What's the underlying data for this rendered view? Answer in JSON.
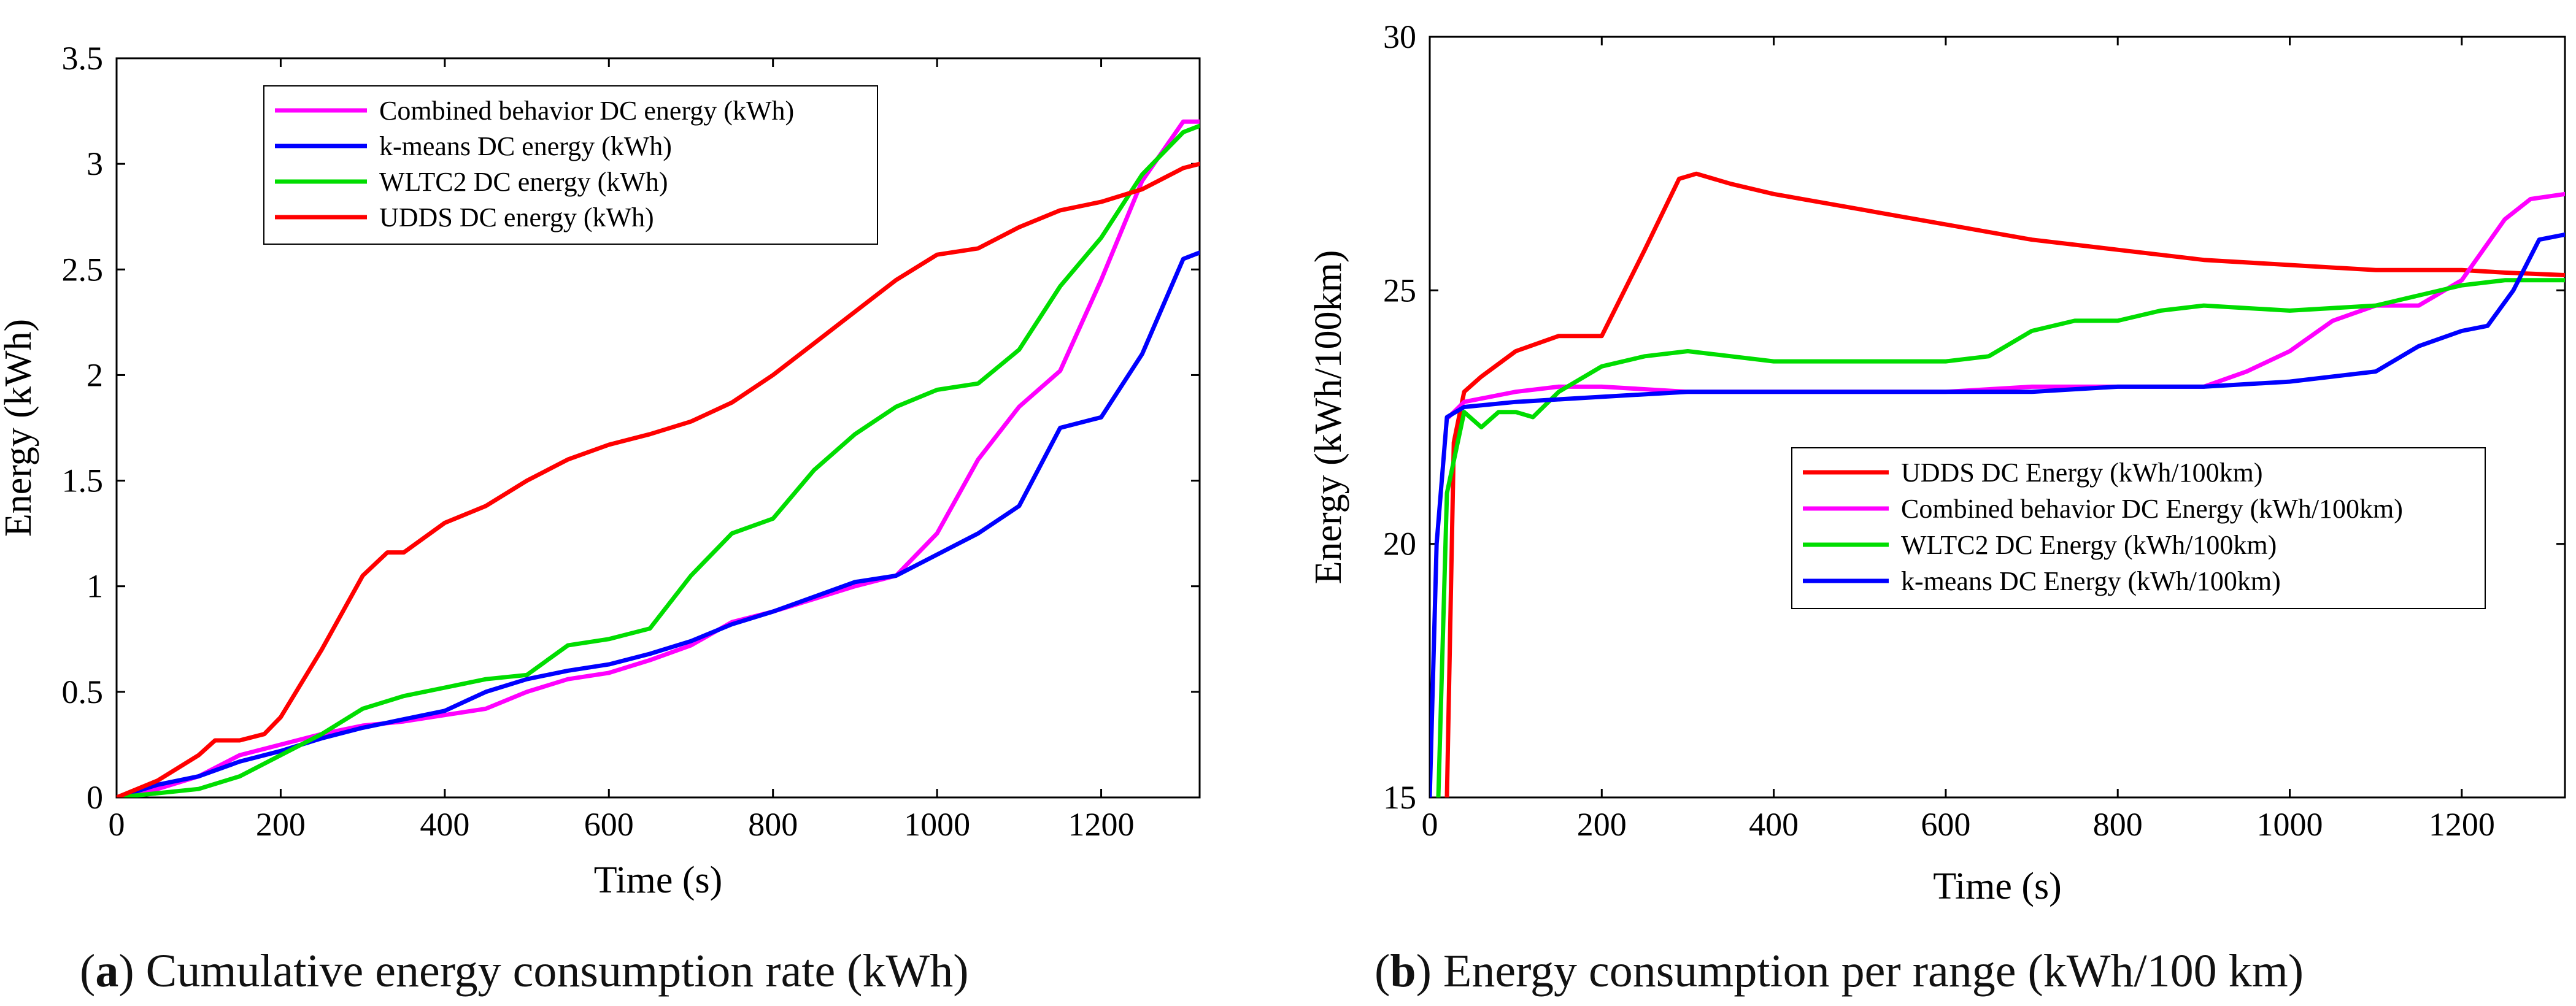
{
  "chart_data": [
    {
      "id": "a",
      "type": "line",
      "caption_letter": "a",
      "caption_text": "Cumulative energy consumption rate (kWh)",
      "xlabel": "Time (s)",
      "ylabel": "Energy (kWh)",
      "xlim": [
        0,
        1320
      ],
      "ylim": [
        0,
        3.5
      ],
      "xticks": [
        0,
        200,
        400,
        600,
        800,
        1000,
        1200
      ],
      "yticks": [
        0,
        0.5,
        1,
        1.5,
        2,
        2.5,
        3,
        3.5
      ],
      "ytick_labels": [
        "0",
        "0.5",
        "1",
        "1.5",
        "2",
        "2.5",
        "3",
        "3.5"
      ],
      "legend_position": "top-center",
      "series": [
        {
          "name": "Combined behavior DC energy (kWh)",
          "color": "#ff00ff",
          "points": [
            [
              0,
              0
            ],
            [
              50,
              0.04
            ],
            [
              100,
              0.1
            ],
            [
              150,
              0.2
            ],
            [
              200,
              0.25
            ],
            [
              250,
              0.3
            ],
            [
              300,
              0.34
            ],
            [
              350,
              0.36
            ],
            [
              400,
              0.39
            ],
            [
              450,
              0.42
            ],
            [
              500,
              0.5
            ],
            [
              550,
              0.56
            ],
            [
              600,
              0.59
            ],
            [
              650,
              0.65
            ],
            [
              700,
              0.72
            ],
            [
              750,
              0.83
            ],
            [
              800,
              0.88
            ],
            [
              850,
              0.94
            ],
            [
              900,
              1.0
            ],
            [
              950,
              1.05
            ],
            [
              1000,
              1.25
            ],
            [
              1050,
              1.6
            ],
            [
              1100,
              1.85
            ],
            [
              1150,
              2.02
            ],
            [
              1200,
              2.45
            ],
            [
              1250,
              2.92
            ],
            [
              1300,
              3.2
            ],
            [
              1320,
              3.2
            ]
          ]
        },
        {
          "name": "k-means DC energy (kWh)",
          "color": "#0000ff",
          "points": [
            [
              0,
              0
            ],
            [
              50,
              0.06
            ],
            [
              100,
              0.1
            ],
            [
              150,
              0.17
            ],
            [
              200,
              0.22
            ],
            [
              250,
              0.28
            ],
            [
              300,
              0.33
            ],
            [
              350,
              0.37
            ],
            [
              400,
              0.41
            ],
            [
              450,
              0.5
            ],
            [
              500,
              0.56
            ],
            [
              550,
              0.6
            ],
            [
              600,
              0.63
            ],
            [
              650,
              0.68
            ],
            [
              700,
              0.74
            ],
            [
              750,
              0.82
            ],
            [
              800,
              0.88
            ],
            [
              850,
              0.95
            ],
            [
              900,
              1.02
            ],
            [
              950,
              1.05
            ],
            [
              1000,
              1.15
            ],
            [
              1050,
              1.25
            ],
            [
              1100,
              1.38
            ],
            [
              1150,
              1.75
            ],
            [
              1200,
              1.8
            ],
            [
              1250,
              2.1
            ],
            [
              1300,
              2.55
            ],
            [
              1320,
              2.58
            ]
          ]
        },
        {
          "name": "WLTC2 DC energy (kWh)",
          "color": "#00dd00",
          "points": [
            [
              0,
              0
            ],
            [
              50,
              0.02
            ],
            [
              100,
              0.04
            ],
            [
              150,
              0.1
            ],
            [
              200,
              0.2
            ],
            [
              250,
              0.3
            ],
            [
              300,
              0.42
            ],
            [
              350,
              0.48
            ],
            [
              400,
              0.52
            ],
            [
              450,
              0.56
            ],
            [
              500,
              0.58
            ],
            [
              550,
              0.72
            ],
            [
              600,
              0.75
            ],
            [
              650,
              0.8
            ],
            [
              700,
              1.05
            ],
            [
              750,
              1.25
            ],
            [
              800,
              1.32
            ],
            [
              850,
              1.55
            ],
            [
              900,
              1.72
            ],
            [
              950,
              1.85
            ],
            [
              1000,
              1.93
            ],
            [
              1050,
              1.96
            ],
            [
              1100,
              2.12
            ],
            [
              1150,
              2.42
            ],
            [
              1200,
              2.65
            ],
            [
              1250,
              2.95
            ],
            [
              1300,
              3.15
            ],
            [
              1320,
              3.18
            ]
          ]
        },
        {
          "name": "UDDS DC energy (kWh)",
          "color": "#ff0000",
          "points": [
            [
              0,
              0
            ],
            [
              50,
              0.08
            ],
            [
              100,
              0.2
            ],
            [
              120,
              0.27
            ],
            [
              150,
              0.27
            ],
            [
              180,
              0.3
            ],
            [
              200,
              0.38
            ],
            [
              250,
              0.7
            ],
            [
              300,
              1.05
            ],
            [
              330,
              1.16
            ],
            [
              350,
              1.16
            ],
            [
              400,
              1.3
            ],
            [
              450,
              1.38
            ],
            [
              500,
              1.5
            ],
            [
              550,
              1.6
            ],
            [
              600,
              1.67
            ],
            [
              650,
              1.72
            ],
            [
              700,
              1.78
            ],
            [
              750,
              1.87
            ],
            [
              800,
              2.0
            ],
            [
              850,
              2.15
            ],
            [
              900,
              2.3
            ],
            [
              950,
              2.45
            ],
            [
              1000,
              2.57
            ],
            [
              1050,
              2.6
            ],
            [
              1100,
              2.7
            ],
            [
              1150,
              2.78
            ],
            [
              1200,
              2.82
            ],
            [
              1250,
              2.88
            ],
            [
              1300,
              2.98
            ],
            [
              1320,
              3.0
            ]
          ]
        }
      ]
    },
    {
      "id": "b",
      "type": "line",
      "caption_letter": "b",
      "caption_text": "Energy consumption per range (kWh/100 km)",
      "xlabel": "Time (s)",
      "ylabel": "Energy (kWh/100km)",
      "xlim": [
        0,
        1320
      ],
      "ylim": [
        15,
        30
      ],
      "xticks": [
        0,
        200,
        400,
        600,
        800,
        1000,
        1200
      ],
      "yticks": [
        15,
        20,
        25,
        30
      ],
      "ytick_labels": [
        "15",
        "20",
        "25",
        "30"
      ],
      "legend_position": "center-right",
      "series": [
        {
          "name": "UDDS DC Energy (kWh/100km)",
          "color": "#ff0000",
          "points": [
            [
              20,
              15
            ],
            [
              28,
              22
            ],
            [
              40,
              23
            ],
            [
              60,
              23.3
            ],
            [
              100,
              23.8
            ],
            [
              150,
              24.1
            ],
            [
              200,
              24.1
            ],
            [
              250,
              25.8
            ],
            [
              290,
              27.2
            ],
            [
              310,
              27.3
            ],
            [
              350,
              27.1
            ],
            [
              400,
              26.9
            ],
            [
              500,
              26.6
            ],
            [
              600,
              26.3
            ],
            [
              700,
              26.0
            ],
            [
              800,
              25.8
            ],
            [
              900,
              25.6
            ],
            [
              1000,
              25.5
            ],
            [
              1100,
              25.4
            ],
            [
              1200,
              25.4
            ],
            [
              1250,
              25.35
            ],
            [
              1320,
              25.3
            ]
          ]
        },
        {
          "name": "Combined behavior DC Energy (kWh/100km)",
          "color": "#ff00ff",
          "points": [
            [
              22,
              22.5
            ],
            [
              40,
              22.8
            ],
            [
              100,
              23.0
            ],
            [
              150,
              23.1
            ],
            [
              200,
              23.1
            ],
            [
              300,
              23.0
            ],
            [
              400,
              23.0
            ],
            [
              500,
              23.0
            ],
            [
              600,
              23.0
            ],
            [
              700,
              23.1
            ],
            [
              800,
              23.1
            ],
            [
              900,
              23.1
            ],
            [
              950,
              23.4
            ],
            [
              1000,
              23.8
            ],
            [
              1050,
              24.4
            ],
            [
              1100,
              24.7
            ],
            [
              1150,
              24.7
            ],
            [
              1200,
              25.2
            ],
            [
              1250,
              26.4
            ],
            [
              1280,
              26.8
            ],
            [
              1320,
              26.9
            ]
          ]
        },
        {
          "name": "WLTC2 DC Energy (kWh/100km)",
          "color": "#00dd00",
          "points": [
            [
              10,
              15
            ],
            [
              20,
              21
            ],
            [
              40,
              22.6
            ],
            [
              60,
              22.3
            ],
            [
              80,
              22.6
            ],
            [
              100,
              22.6
            ],
            [
              120,
              22.5
            ],
            [
              150,
              23.0
            ],
            [
              200,
              23.5
            ],
            [
              250,
              23.7
            ],
            [
              300,
              23.8
            ],
            [
              400,
              23.6
            ],
            [
              500,
              23.6
            ],
            [
              600,
              23.6
            ],
            [
              650,
              23.7
            ],
            [
              700,
              24.2
            ],
            [
              750,
              24.4
            ],
            [
              800,
              24.4
            ],
            [
              850,
              24.6
            ],
            [
              900,
              24.7
            ],
            [
              1000,
              24.6
            ],
            [
              1100,
              24.7
            ],
            [
              1150,
              24.9
            ],
            [
              1200,
              25.1
            ],
            [
              1250,
              25.2
            ],
            [
              1320,
              25.2
            ]
          ]
        },
        {
          "name": "k-means DC Energy (kWh/100km)",
          "color": "#0000ff",
          "points": [
            [
              0,
              15
            ],
            [
              8,
              20
            ],
            [
              20,
              22.5
            ],
            [
              40,
              22.7
            ],
            [
              100,
              22.8
            ],
            [
              200,
              22.9
            ],
            [
              300,
              23.0
            ],
            [
              400,
              23.0
            ],
            [
              500,
              23.0
            ],
            [
              600,
              23.0
            ],
            [
              700,
              23.0
            ],
            [
              800,
              23.1
            ],
            [
              900,
              23.1
            ],
            [
              1000,
              23.2
            ],
            [
              1050,
              23.3
            ],
            [
              1100,
              23.4
            ],
            [
              1150,
              23.9
            ],
            [
              1200,
              24.2
            ],
            [
              1230,
              24.3
            ],
            [
              1260,
              25.0
            ],
            [
              1290,
              26.0
            ],
            [
              1320,
              26.1
            ]
          ]
        }
      ]
    }
  ]
}
